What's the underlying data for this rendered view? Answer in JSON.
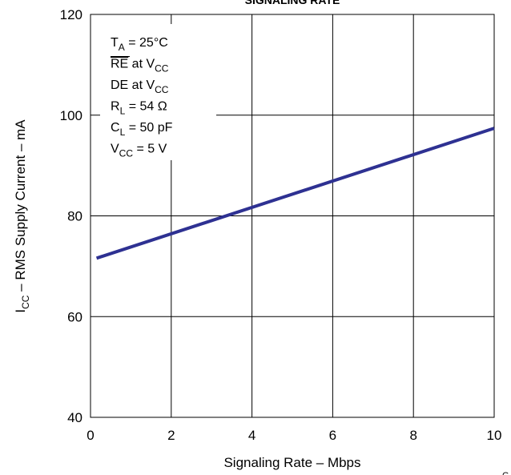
{
  "chart_data": {
    "type": "line",
    "title": "SIGNALING RATE",
    "xlabel": "Signaling Rate – Mbps",
    "ylabel": {
      "main": "I",
      "sub": "CC",
      "rest": " – RMS Supply Current – mA"
    },
    "xlim": [
      0,
      10
    ],
    "ylim": [
      40,
      120
    ],
    "xticks": [
      "0",
      "2",
      "4",
      "6",
      "8",
      "10"
    ],
    "yticks": [
      "40",
      "60",
      "80",
      "100",
      "120"
    ],
    "grid": true,
    "series": [
      {
        "color": "#2e3192",
        "x": [
          0.15,
          10
        ],
        "y": [
          71.6,
          97.4
        ]
      }
    ],
    "conditions": [
      {
        "main": "T",
        "sub": "A",
        "rest": " = 25°C"
      },
      {
        "main": "RE",
        "sub": "CC",
        "rest": " at V",
        "overline": true
      },
      {
        "main": "DE at V",
        "sub": "CC",
        "rest": ""
      },
      {
        "main": "R",
        "sub": "L",
        "rest": " = 54 Ω"
      },
      {
        "main": "C",
        "sub": "L",
        "rest": " = 50 pF"
      },
      {
        "main": "V",
        "sub": "CC",
        "rest": " = 5 V"
      }
    ],
    "corner_mark": "G"
  }
}
